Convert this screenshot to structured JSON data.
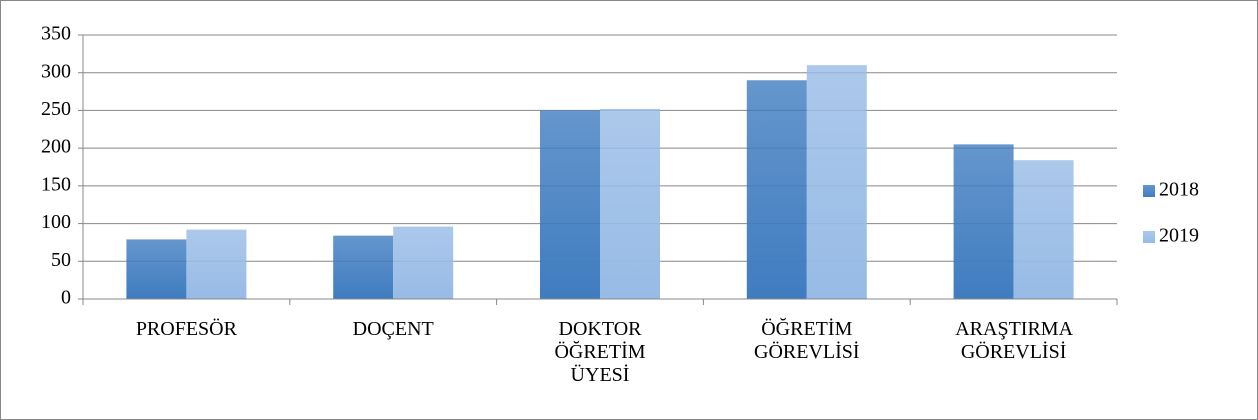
{
  "chart_data": {
    "type": "bar",
    "categories": [
      "PROFESÖR",
      "DOÇENT",
      "DOKTOR ÖĞRETİM ÜYESİ",
      "ÖĞRETİM GÖREVLİSİ",
      "ARAŞTIRMA GÖREVLİSİ"
    ],
    "series": [
      {
        "name": "2018",
        "color": "#3f7cc0",
        "values": [
          79,
          84,
          250,
          290,
          205
        ]
      },
      {
        "name": "2019",
        "color": "#97bbe6",
        "values": [
          92,
          96,
          252,
          310,
          184
        ]
      }
    ],
    "ylim": [
      0,
      350
    ],
    "yticks": [
      0,
      50,
      100,
      150,
      200,
      250,
      300,
      350
    ],
    "grid": true,
    "legend": "right"
  }
}
